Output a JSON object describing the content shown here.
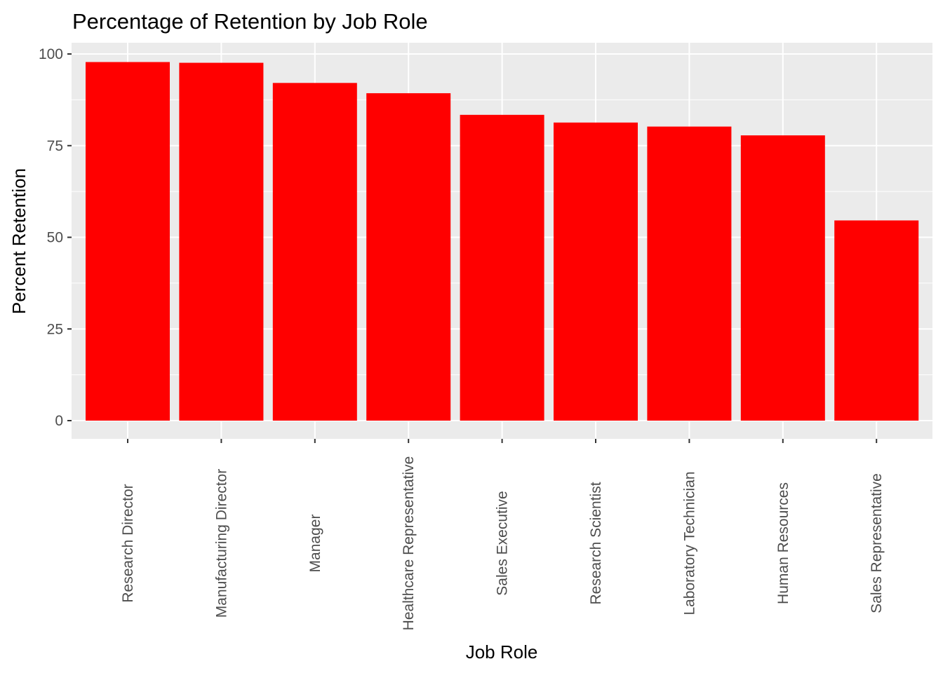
{
  "chart_data": {
    "type": "bar",
    "title": "Percentage of Retention by Job Role",
    "xlabel": "Job Role",
    "ylabel": "Percent Retention",
    "categories": [
      "Research Director",
      "Manufacturing Director",
      "Manager",
      "Healthcare Representative",
      "Sales Executive",
      "Research Scientist",
      "Laboratory Technician",
      "Human Resources",
      "Sales Representative"
    ],
    "values": [
      97.8,
      97.6,
      92.1,
      89.3,
      83.4,
      81.3,
      80.2,
      77.8,
      54.6
    ],
    "ylim": [
      0,
      100
    ],
    "yticks": [
      0,
      25,
      50,
      75,
      100
    ],
    "bar_color": "#ff0000",
    "panel_background": "#ebebeb",
    "grid": true,
    "legend": "none"
  }
}
